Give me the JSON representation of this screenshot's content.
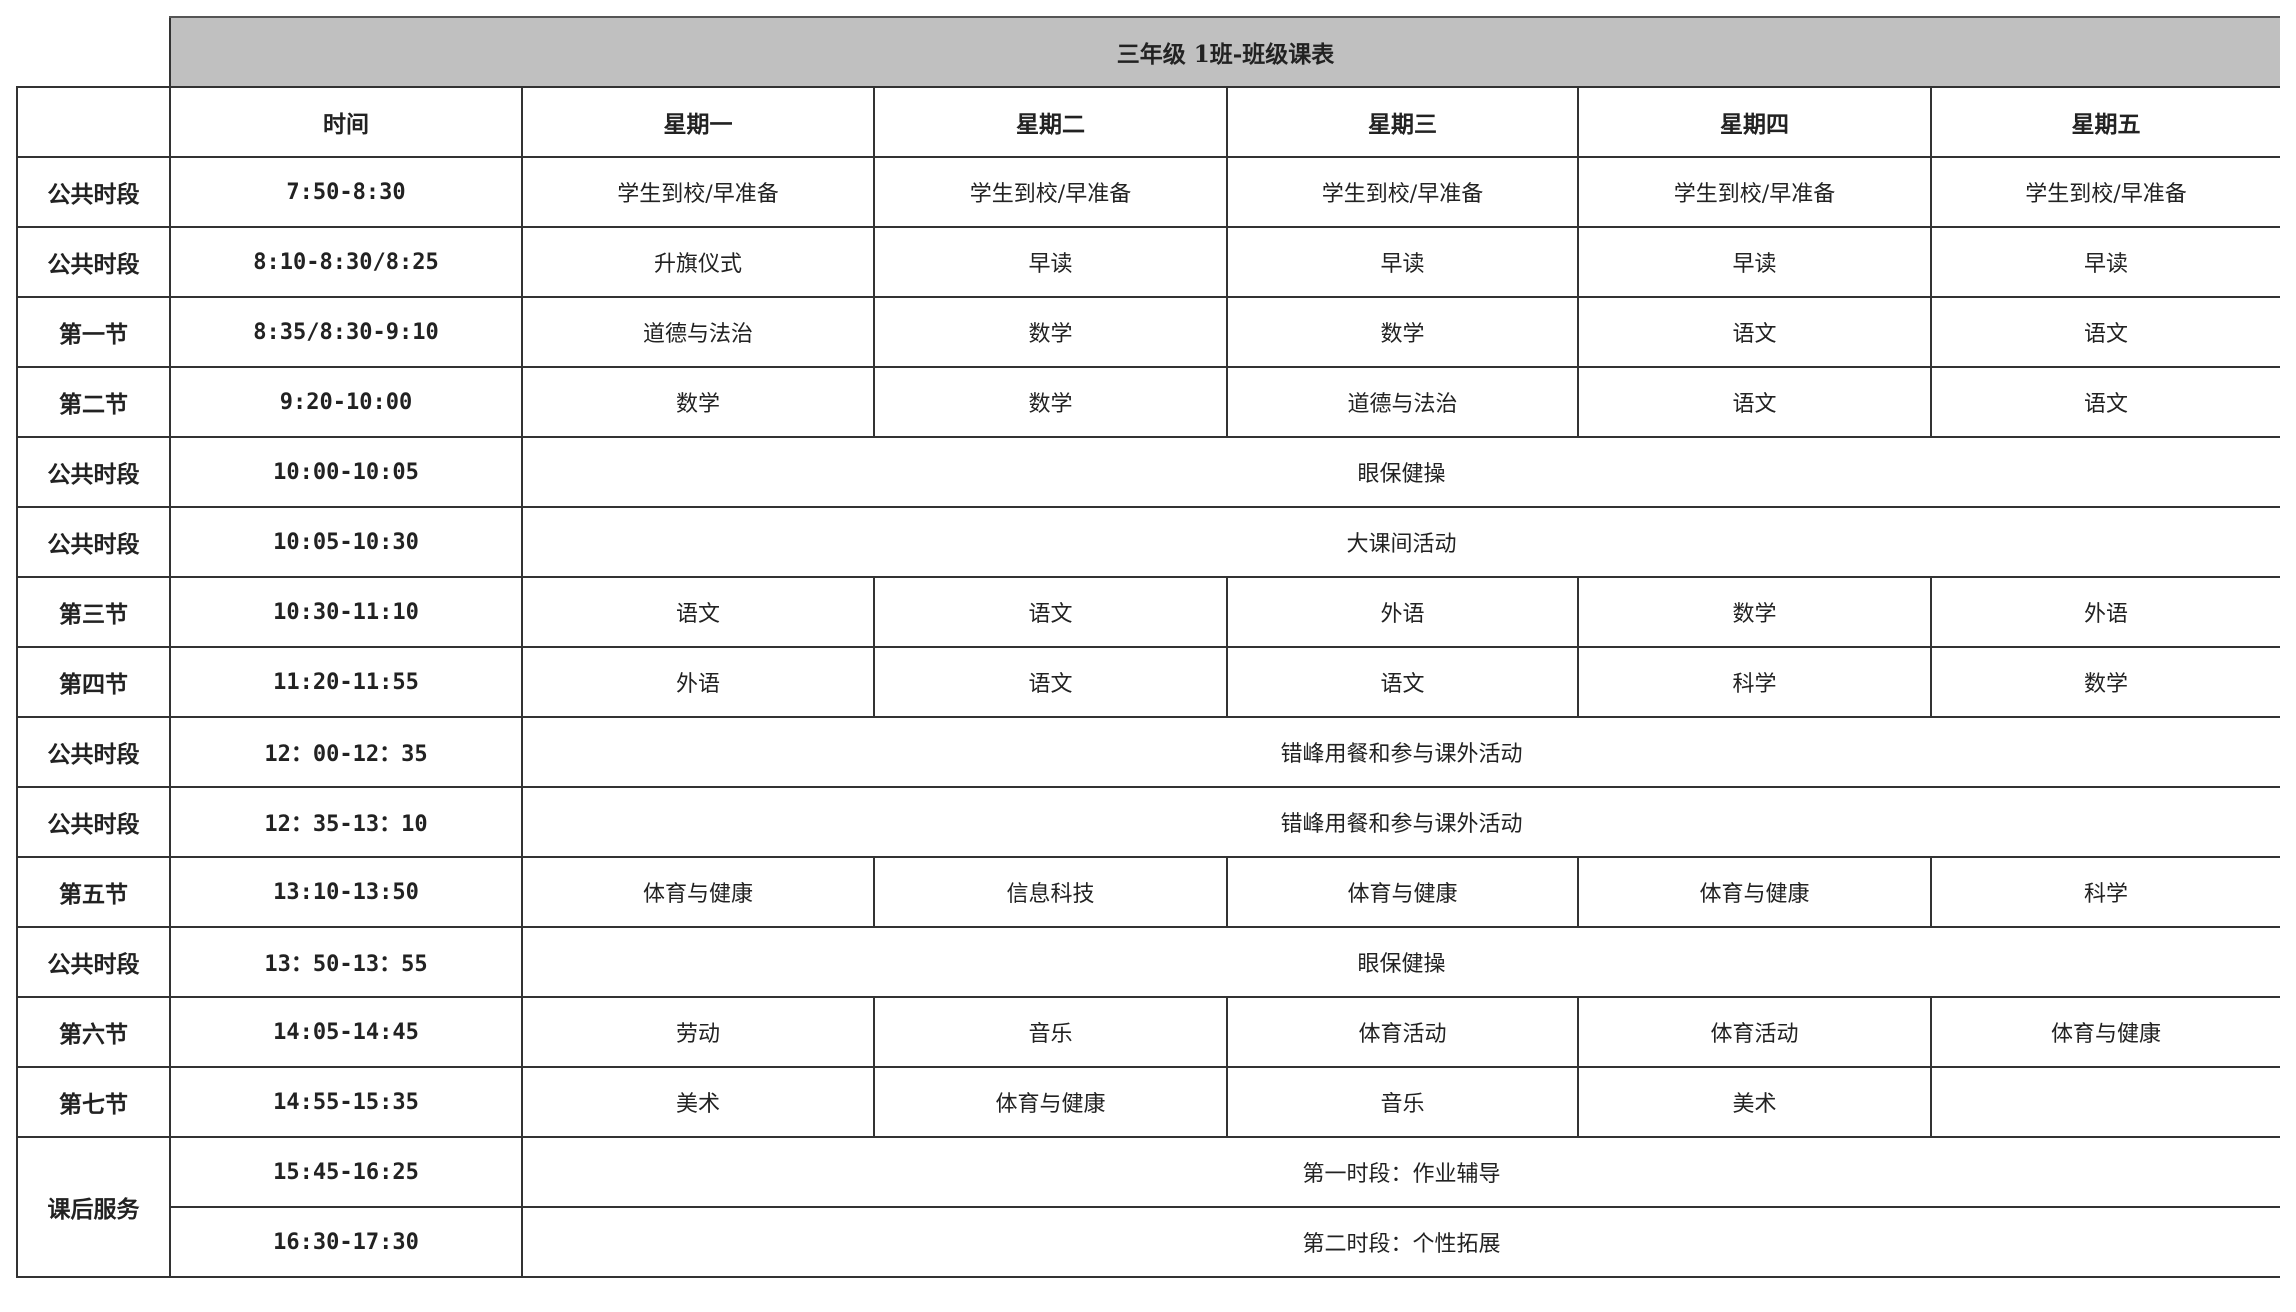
{
  "title": "三年级 1班-班级课表",
  "headers": [
    "时间",
    "星期一",
    "星期二",
    "星期三",
    "星期四",
    "星期五"
  ],
  "rows": [
    {
      "label": "公共时段",
      "time": "7:50-8:30",
      "cells": [
        "学生到校/早准备",
        "学生到校/早准备",
        "学生到校/早准备",
        "学生到校/早准备",
        "学生到校/早准备"
      ]
    },
    {
      "label": "公共时段",
      "time": "8:10-8:30/8:25",
      "cells": [
        "升旗仪式",
        "早读",
        "早读",
        "早读",
        "早读"
      ]
    },
    {
      "label": "第一节",
      "time": "8:35/8:30-9:10",
      "cells": [
        "道德与法治",
        "数学",
        "数学",
        "语文",
        "语文"
      ]
    },
    {
      "label": "第二节",
      "time": "9:20-10:00",
      "cells": [
        "数学",
        "数学",
        "道德与法治",
        "语文",
        "语文"
      ]
    },
    {
      "label": "公共时段",
      "time": "10:00-10:05",
      "merged": "眼保健操"
    },
    {
      "label": "公共时段",
      "time": "10:05-10:30",
      "merged": "大课间活动"
    },
    {
      "label": "第三节",
      "time": "10:30-11:10",
      "cells": [
        "语文",
        "语文",
        "外语",
        "数学",
        "外语"
      ]
    },
    {
      "label": "第四节",
      "time": "11:20-11:55",
      "cells": [
        "外语",
        "语文",
        "语文",
        "科学",
        "数学"
      ]
    },
    {
      "label": "公共时段",
      "time": "12：00-12：35",
      "merged": "错峰用餐和参与课外活动"
    },
    {
      "label": "公共时段",
      "time": "12：35-13：10",
      "merged": "错峰用餐和参与课外活动"
    },
    {
      "label": "第五节",
      "time": "13:10-13:50",
      "cells": [
        "体育与健康",
        "信息科技",
        "体育与健康",
        "体育与健康",
        "科学"
      ]
    },
    {
      "label": "公共时段",
      "time": "13：50-13：55",
      "merged": "眼保健操"
    },
    {
      "label": "第六节",
      "time": "14:05-14:45",
      "cells": [
        "劳动",
        "音乐",
        "体育活动",
        "体育活动",
        "体育与健康"
      ]
    },
    {
      "label": "第七节",
      "time": "14:55-15:35",
      "cells": [
        "美术",
        "体育与健康",
        "音乐",
        "美术",
        ""
      ]
    }
  ],
  "after_school": {
    "label": "课后服务",
    "slots": [
      {
        "time": "15:45-16:25",
        "activity": "第一时段：作业辅导"
      },
      {
        "time": "16:30-17:30",
        "activity": "第二时段：个性拓展"
      }
    ]
  }
}
